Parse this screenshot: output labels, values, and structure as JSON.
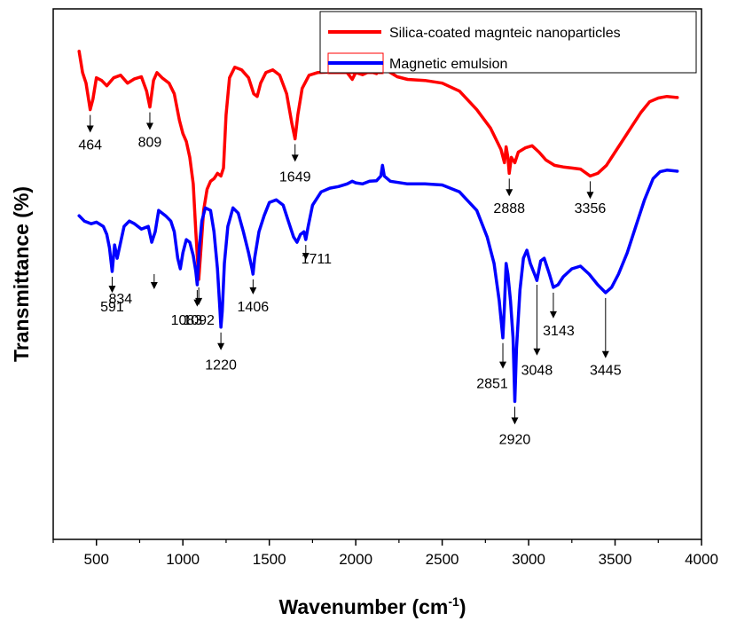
{
  "chart_data": {
    "type": "line",
    "xlabel": "Wavenumber (cm",
    "xlabel_sup": "-1",
    "xlabel_close": ")",
    "ylabel": "Transmittance (%)",
    "xlim": [
      250,
      4000
    ],
    "ylim": [
      0,
      100
    ],
    "y_ticks_shown": false,
    "grid": false,
    "legend_position": "top-right",
    "x_ticks": [
      {
        "value": 500,
        "label": "500"
      },
      {
        "value": 1000,
        "label": "1000"
      },
      {
        "value": 1500,
        "label": "1500"
      },
      {
        "value": 2000,
        "label": "2000"
      },
      {
        "value": 2500,
        "label": "2500"
      },
      {
        "value": 3000,
        "label": "3000"
      },
      {
        "value": 3500,
        "label": "3500"
      },
      {
        "value": 4000,
        "label": "4000"
      }
    ],
    "series": [
      {
        "name": "Silica-coated magnteic nanoparticles",
        "color": "#ff0000",
        "legend_box_color": "#ff0000",
        "points": [
          [
            400,
            92
          ],
          [
            420,
            88
          ],
          [
            440,
            86
          ],
          [
            464,
            81
          ],
          [
            480,
            83
          ],
          [
            500,
            87
          ],
          [
            530,
            86.5
          ],
          [
            560,
            85.5
          ],
          [
            600,
            87
          ],
          [
            640,
            87.5
          ],
          [
            680,
            86
          ],
          [
            720,
            86.8
          ],
          [
            760,
            87.2
          ],
          [
            790,
            84.5
          ],
          [
            809,
            81.5
          ],
          [
            830,
            86.5
          ],
          [
            850,
            88
          ],
          [
            880,
            87
          ],
          [
            920,
            86
          ],
          [
            950,
            84
          ],
          [
            980,
            79
          ],
          [
            1000,
            76.5
          ],
          [
            1020,
            75
          ],
          [
            1040,
            72
          ],
          [
            1060,
            67
          ],
          [
            1075,
            58
          ],
          [
            1092,
            49
          ],
          [
            1105,
            55
          ],
          [
            1120,
            62
          ],
          [
            1140,
            66
          ],
          [
            1160,
            67.5
          ],
          [
            1180,
            68
          ],
          [
            1200,
            69
          ],
          [
            1220,
            68.5
          ],
          [
            1235,
            70
          ],
          [
            1250,
            80
          ],
          [
            1270,
            87
          ],
          [
            1300,
            89
          ],
          [
            1340,
            88.5
          ],
          [
            1380,
            87
          ],
          [
            1410,
            84
          ],
          [
            1430,
            83.5
          ],
          [
            1450,
            86
          ],
          [
            1480,
            88
          ],
          [
            1520,
            88.5
          ],
          [
            1560,
            87.5
          ],
          [
            1600,
            84
          ],
          [
            1630,
            78.5
          ],
          [
            1649,
            75.5
          ],
          [
            1665,
            80
          ],
          [
            1690,
            85
          ],
          [
            1730,
            87.5
          ],
          [
            1780,
            88
          ],
          [
            1850,
            88.1
          ],
          [
            1950,
            88
          ],
          [
            1980,
            86.7
          ],
          [
            2000,
            88
          ],
          [
            2040,
            87.6
          ],
          [
            2080,
            88.2
          ],
          [
            2120,
            87.8
          ],
          [
            2140,
            89
          ],
          [
            2155,
            91
          ],
          [
            2165,
            89
          ],
          [
            2200,
            88
          ],
          [
            2240,
            87.2
          ],
          [
            2300,
            86.7
          ],
          [
            2400,
            86.5
          ],
          [
            2500,
            86
          ],
          [
            2600,
            84.5
          ],
          [
            2700,
            81
          ],
          [
            2780,
            77.5
          ],
          [
            2840,
            73.5
          ],
          [
            2860,
            71
          ],
          [
            2870,
            74
          ],
          [
            2880,
            72
          ],
          [
            2888,
            69
          ],
          [
            2900,
            72
          ],
          [
            2920,
            71
          ],
          [
            2940,
            73
          ],
          [
            2980,
            73.8
          ],
          [
            3020,
            74.2
          ],
          [
            3060,
            73
          ],
          [
            3100,
            71.5
          ],
          [
            3150,
            70.5
          ],
          [
            3200,
            70.2
          ],
          [
            3250,
            70
          ],
          [
            3300,
            69.8
          ],
          [
            3356,
            68.5
          ],
          [
            3400,
            69
          ],
          [
            3450,
            70.5
          ],
          [
            3500,
            73
          ],
          [
            3550,
            75.5
          ],
          [
            3600,
            78
          ],
          [
            3650,
            80.5
          ],
          [
            3700,
            82.5
          ],
          [
            3750,
            83.2
          ],
          [
            3800,
            83.5
          ],
          [
            3860,
            83.3
          ]
        ]
      },
      {
        "name": "Magnetic emulsion",
        "color": "#0000ff",
        "legend_box_color": "#ff0000",
        "points": [
          [
            400,
            61
          ],
          [
            430,
            60
          ],
          [
            470,
            59.5
          ],
          [
            500,
            59.8
          ],
          [
            540,
            59
          ],
          [
            560,
            57.5
          ],
          [
            575,
            55
          ],
          [
            591,
            50.5
          ],
          [
            605,
            55.5
          ],
          [
            620,
            53
          ],
          [
            640,
            56
          ],
          [
            660,
            59
          ],
          [
            690,
            60
          ],
          [
            720,
            59.5
          ],
          [
            760,
            58.5
          ],
          [
            800,
            59
          ],
          [
            820,
            56
          ],
          [
            840,
            58
          ],
          [
            860,
            62
          ],
          [
            880,
            61.5
          ],
          [
            900,
            61
          ],
          [
            930,
            60
          ],
          [
            950,
            58
          ],
          [
            970,
            53
          ],
          [
            985,
            51
          ],
          [
            1000,
            54
          ],
          [
            1020,
            56.5
          ],
          [
            1040,
            56
          ],
          [
            1060,
            53.5
          ],
          [
            1075,
            50.5
          ],
          [
            1083,
            48
          ],
          [
            1095,
            55
          ],
          [
            1110,
            60
          ],
          [
            1130,
            62.5
          ],
          [
            1160,
            62
          ],
          [
            1180,
            58
          ],
          [
            1200,
            51
          ],
          [
            1215,
            43
          ],
          [
            1220,
            40
          ],
          [
            1228,
            43
          ],
          [
            1240,
            52
          ],
          [
            1260,
            59
          ],
          [
            1290,
            62.5
          ],
          [
            1320,
            61.5
          ],
          [
            1350,
            58
          ],
          [
            1380,
            54
          ],
          [
            1400,
            51
          ],
          [
            1406,
            50
          ],
          [
            1415,
            53
          ],
          [
            1440,
            58
          ],
          [
            1470,
            61
          ],
          [
            1500,
            63.5
          ],
          [
            1540,
            64
          ],
          [
            1580,
            63
          ],
          [
            1610,
            60
          ],
          [
            1640,
            57
          ],
          [
            1660,
            56
          ],
          [
            1680,
            57.5
          ],
          [
            1700,
            58
          ],
          [
            1711,
            56.5
          ],
          [
            1725,
            59
          ],
          [
            1750,
            63
          ],
          [
            1800,
            65.5
          ],
          [
            1850,
            66.2
          ],
          [
            1900,
            66.5
          ],
          [
            1950,
            67
          ],
          [
            1980,
            67.5
          ],
          [
            2000,
            67.2
          ],
          [
            2040,
            67
          ],
          [
            2080,
            67.5
          ],
          [
            2120,
            67.6
          ],
          [
            2145,
            68.5
          ],
          [
            2155,
            70.5
          ],
          [
            2165,
            68.5
          ],
          [
            2200,
            67.5
          ],
          [
            2300,
            67
          ],
          [
            2400,
            67
          ],
          [
            2500,
            66.8
          ],
          [
            2600,
            65.5
          ],
          [
            2700,
            62
          ],
          [
            2760,
            57
          ],
          [
            2800,
            52
          ],
          [
            2830,
            45
          ],
          [
            2851,
            38
          ],
          [
            2860,
            44
          ],
          [
            2870,
            52
          ],
          [
            2880,
            50
          ],
          [
            2895,
            45
          ],
          [
            2910,
            38
          ],
          [
            2920,
            26
          ],
          [
            2930,
            36
          ],
          [
            2950,
            47
          ],
          [
            2970,
            53
          ],
          [
            2990,
            54.5
          ],
          [
            3010,
            52
          ],
          [
            3040,
            49.5
          ],
          [
            3048,
            48.8
          ],
          [
            3070,
            52.5
          ],
          [
            3090,
            53
          ],
          [
            3120,
            50
          ],
          [
            3143,
            47.5
          ],
          [
            3170,
            48
          ],
          [
            3200,
            49.5
          ],
          [
            3250,
            51
          ],
          [
            3300,
            51.5
          ],
          [
            3350,
            50
          ],
          [
            3400,
            48
          ],
          [
            3445,
            46.5
          ],
          [
            3480,
            47.5
          ],
          [
            3520,
            50
          ],
          [
            3570,
            54
          ],
          [
            3620,
            59
          ],
          [
            3670,
            64
          ],
          [
            3720,
            68
          ],
          [
            3760,
            69.3
          ],
          [
            3800,
            69.6
          ],
          [
            3860,
            69.4
          ]
        ]
      }
    ],
    "annotations": [
      {
        "label": "464",
        "x": 464,
        "arrow_from": 80,
        "arrow_to": 77,
        "text_y": 73.5
      },
      {
        "label": "809",
        "x": 809,
        "arrow_from": 80.5,
        "arrow_to": 77.5,
        "text_y": 74
      },
      {
        "label": "1092",
        "x": 1092,
        "arrow_from": 47.5,
        "arrow_to": 44.5,
        "text_y": 40.5
      },
      {
        "label": "1649",
        "x": 1649,
        "arrow_from": 74.5,
        "arrow_to": 71.5,
        "text_y": 67.5
      },
      {
        "label": "2888",
        "x": 2888,
        "arrow_from": 68,
        "arrow_to": 65,
        "text_y": 61.5
      },
      {
        "label": "3356",
        "x": 3356,
        "arrow_from": 67.5,
        "arrow_to": 64.5,
        "text_y": 61.5
      },
      {
        "label": "591",
        "x": 591,
        "arrow_from": 49.5,
        "arrow_to": 46.8,
        "text_y": 43
      },
      {
        "label": "834",
        "x": 834,
        "arrow_from": 50,
        "arrow_to": 47.5,
        "text_y": 44.5,
        "text_dx": -38
      },
      {
        "label": "1083",
        "x": 1083,
        "arrow_from": 47,
        "arrow_to": 44.2,
        "text_y": 40.5,
        "text_dx": -12
      },
      {
        "label": "1220",
        "x": 1220,
        "arrow_from": 39,
        "arrow_to": 36,
        "text_y": 32
      },
      {
        "label": "1406",
        "x": 1406,
        "arrow_from": 49,
        "arrow_to": 46.5,
        "text_y": 43
      },
      {
        "label": "1711",
        "x": 1711,
        "arrow_from": 55.5,
        "arrow_to": 53,
        "text_y": 52,
        "text_dx": 12
      },
      {
        "label": "2851",
        "x": 2851,
        "arrow_from": 37,
        "arrow_to": 32.5,
        "text_y": 28.5,
        "text_dx": -12
      },
      {
        "label": "2920",
        "x": 2920,
        "arrow_from": 25,
        "arrow_to": 22,
        "text_y": 18
      },
      {
        "label": "3048",
        "x": 3048,
        "arrow_from": 48,
        "arrow_to": 35,
        "text_y": 31
      },
      {
        "label": "3143",
        "x": 3143,
        "arrow_from": 46.5,
        "arrow_to": 42,
        "text_y": 38.5,
        "text_dx": 6
      },
      {
        "label": "3445",
        "x": 3445,
        "arrow_from": 45.5,
        "arrow_to": 34.5,
        "text_y": 31
      }
    ]
  }
}
